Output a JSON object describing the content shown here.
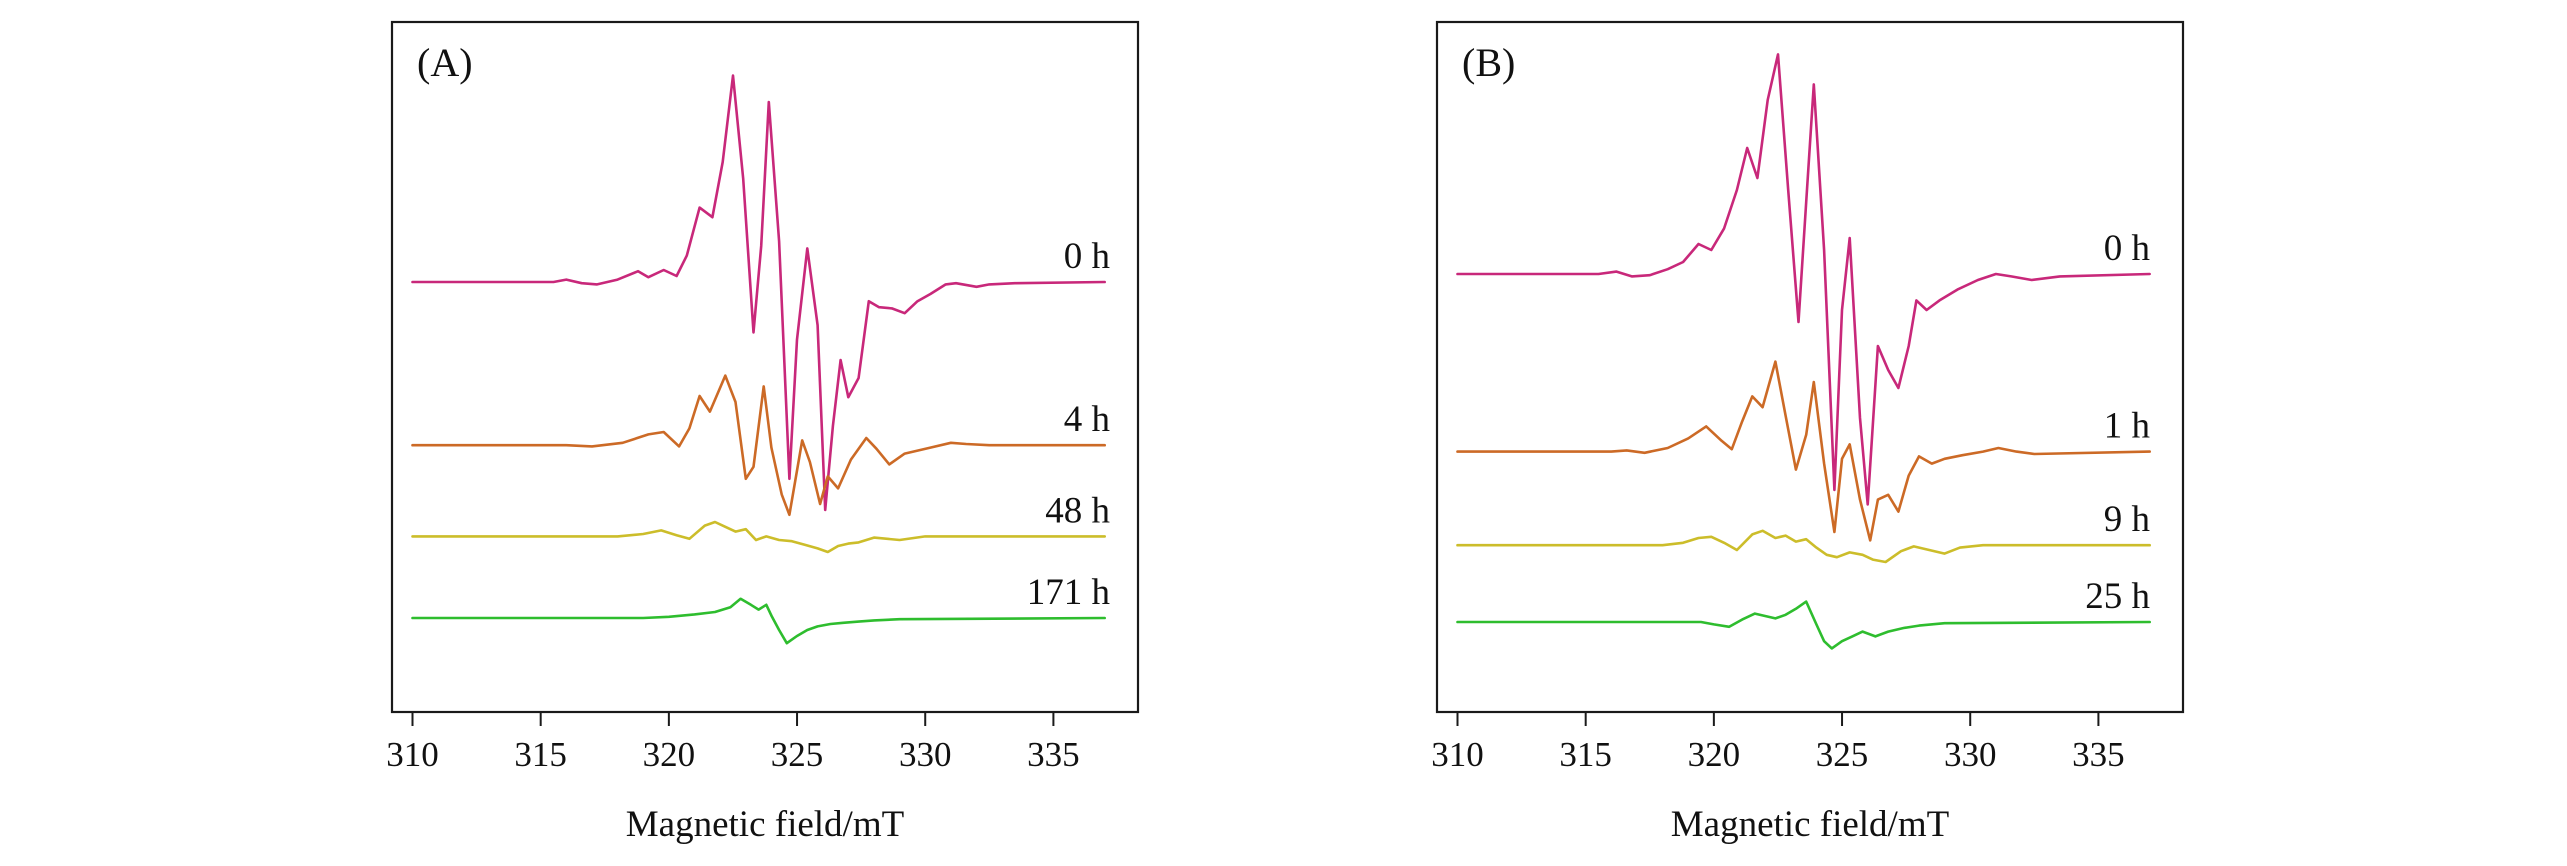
{
  "chart_data": [
    {
      "type": "line",
      "panel_label": "(A)",
      "title": "",
      "xlabel": "Magnetic field/mT",
      "ylabel": "",
      "xlim": [
        309.2,
        338.3
      ],
      "x_ticks": [
        310,
        315,
        320,
        325,
        330,
        335
      ],
      "y_axis_numbered": false,
      "grid": false,
      "series": [
        {
          "name": "0 h",
          "color": "#c8287a",
          "offset": 0,
          "points": [
            [
              310,
              0
            ],
            [
              315.5,
              0
            ],
            [
              316.0,
              2
            ],
            [
              316.6,
              -1
            ],
            [
              317.2,
              -2
            ],
            [
              318.0,
              2
            ],
            [
              318.8,
              9
            ],
            [
              319.2,
              4
            ],
            [
              319.8,
              10
            ],
            [
              320.3,
              5
            ],
            [
              320.7,
              22
            ],
            [
              321.2,
              62
            ],
            [
              321.7,
              54
            ],
            [
              322.1,
              100
            ],
            [
              322.5,
              172
            ],
            [
              322.9,
              86
            ],
            [
              323.3,
              -42
            ],
            [
              323.6,
              30
            ],
            [
              323.9,
              150
            ],
            [
              324.3,
              34
            ],
            [
              324.7,
              -164
            ],
            [
              325.0,
              -48
            ],
            [
              325.4,
              28
            ],
            [
              325.8,
              -36
            ],
            [
              326.1,
              -190
            ],
            [
              326.4,
              -120
            ],
            [
              326.7,
              -65
            ],
            [
              327.0,
              -96
            ],
            [
              327.4,
              -80
            ],
            [
              327.8,
              -16
            ],
            [
              328.2,
              -21
            ],
            [
              328.7,
              -22
            ],
            [
              329.2,
              -26
            ],
            [
              329.7,
              -16
            ],
            [
              330.2,
              -10
            ],
            [
              330.8,
              -2
            ],
            [
              331.2,
              -1
            ],
            [
              332.0,
              -4
            ],
            [
              332.5,
              -2
            ],
            [
              333.5,
              -1
            ],
            [
              337,
              0
            ]
          ]
        },
        {
          "name": "4 h",
          "color": "#cc6a26",
          "offset": -136,
          "points": [
            [
              310,
              0
            ],
            [
              316.0,
              0
            ],
            [
              317.0,
              -1
            ],
            [
              318.2,
              2
            ],
            [
              319.2,
              9
            ],
            [
              319.8,
              11
            ],
            [
              320.4,
              -1
            ],
            [
              320.8,
              14
            ],
            [
              321.2,
              41
            ],
            [
              321.6,
              28
            ],
            [
              322.2,
              58
            ],
            [
              322.6,
              36
            ],
            [
              323.0,
              -28
            ],
            [
              323.3,
              -18
            ],
            [
              323.7,
              49
            ],
            [
              324.0,
              -2
            ],
            [
              324.4,
              -41
            ],
            [
              324.7,
              -58
            ],
            [
              325.2,
              4
            ],
            [
              325.5,
              -14
            ],
            [
              325.9,
              -49
            ],
            [
              326.2,
              -26
            ],
            [
              326.6,
              -36
            ],
            [
              327.1,
              -12
            ],
            [
              327.7,
              6
            ],
            [
              328.1,
              -3
            ],
            [
              328.6,
              -16
            ],
            [
              329.2,
              -7
            ],
            [
              330.2,
              -2
            ],
            [
              331.0,
              2
            ],
            [
              331.6,
              1
            ],
            [
              332.5,
              0
            ],
            [
              337,
              0
            ]
          ]
        },
        {
          "name": "48 h",
          "color": "#ccbd2a",
          "offset": -212,
          "points": [
            [
              310,
              0
            ],
            [
              318.0,
              0
            ],
            [
              319.0,
              2
            ],
            [
              319.7,
              5
            ],
            [
              320.3,
              1
            ],
            [
              320.8,
              -2
            ],
            [
              321.4,
              9
            ],
            [
              321.8,
              12
            ],
            [
              322.2,
              8
            ],
            [
              322.6,
              4
            ],
            [
              323.0,
              6
            ],
            [
              323.4,
              -3
            ],
            [
              323.8,
              0
            ],
            [
              324.3,
              -3
            ],
            [
              324.8,
              -4
            ],
            [
              325.3,
              -7
            ],
            [
              325.8,
              -10
            ],
            [
              326.2,
              -13
            ],
            [
              326.6,
              -8
            ],
            [
              327.0,
              -6
            ],
            [
              327.4,
              -5
            ],
            [
              328.0,
              -1
            ],
            [
              329.0,
              -3
            ],
            [
              330.0,
              0
            ],
            [
              337,
              0
            ]
          ]
        },
        {
          "name": "171 h",
          "color": "#2ebd2e",
          "offset": -280,
          "points": [
            [
              310,
              0
            ],
            [
              319.0,
              0
            ],
            [
              320.0,
              1
            ],
            [
              321.0,
              3
            ],
            [
              321.8,
              5
            ],
            [
              322.4,
              9
            ],
            [
              322.8,
              16
            ],
            [
              323.2,
              11
            ],
            [
              323.5,
              7
            ],
            [
              323.8,
              11
            ],
            [
              324.0,
              2
            ],
            [
              324.3,
              -10
            ],
            [
              324.6,
              -21
            ],
            [
              325.0,
              -15
            ],
            [
              325.4,
              -10
            ],
            [
              325.8,
              -7
            ],
            [
              326.3,
              -5
            ],
            [
              326.8,
              -4
            ],
            [
              327.4,
              -3
            ],
            [
              328.0,
              -2
            ],
            [
              329.0,
              -1
            ],
            [
              337,
              0
            ]
          ]
        }
      ]
    },
    {
      "type": "line",
      "panel_label": "(B)",
      "title": "",
      "xlabel": "Magnetic field/mT",
      "ylabel": "",
      "xlim": [
        309.2,
        338.3
      ],
      "x_ticks": [
        310,
        315,
        320,
        325,
        330,
        335
      ],
      "y_axis_numbered": false,
      "grid": false,
      "series": [
        {
          "name": "0 h",
          "color": "#c8287a",
          "offset": 0,
          "points": [
            [
              310,
              0
            ],
            [
              315.5,
              0
            ],
            [
              316.2,
              2
            ],
            [
              316.8,
              -2
            ],
            [
              317.5,
              -1
            ],
            [
              318.2,
              4
            ],
            [
              318.8,
              10
            ],
            [
              319.4,
              25
            ],
            [
              319.9,
              20
            ],
            [
              320.4,
              38
            ],
            [
              320.9,
              70
            ],
            [
              321.3,
              105
            ],
            [
              321.7,
              80
            ],
            [
              322.1,
              145
            ],
            [
              322.5,
              183
            ],
            [
              322.9,
              70
            ],
            [
              323.3,
              -40
            ],
            [
              323.6,
              60
            ],
            [
              323.9,
              158
            ],
            [
              324.3,
              20
            ],
            [
              324.7,
              -180
            ],
            [
              325.0,
              -30
            ],
            [
              325.3,
              30
            ],
            [
              325.7,
              -120
            ],
            [
              326.0,
              -192
            ],
            [
              326.4,
              -60
            ],
            [
              326.8,
              -80
            ],
            [
              327.2,
              -95
            ],
            [
              327.6,
              -60
            ],
            [
              327.9,
              -22
            ],
            [
              328.3,
              -30
            ],
            [
              328.8,
              -22
            ],
            [
              329.5,
              -13
            ],
            [
              330.3,
              -5
            ],
            [
              331.0,
              0
            ],
            [
              331.6,
              -2
            ],
            [
              332.4,
              -5
            ],
            [
              333.5,
              -2
            ],
            [
              337,
              0
            ]
          ]
        },
        {
          "name": "1 h",
          "color": "#cc6a26",
          "offset": -148,
          "points": [
            [
              310,
              0
            ],
            [
              316.0,
              0
            ],
            [
              316.6,
              1
            ],
            [
              317.3,
              -1
            ],
            [
              318.2,
              3
            ],
            [
              319.0,
              11
            ],
            [
              319.7,
              21
            ],
            [
              320.3,
              9
            ],
            [
              320.7,
              2
            ],
            [
              321.1,
              25
            ],
            [
              321.5,
              46
            ],
            [
              321.9,
              37
            ],
            [
              322.4,
              75
            ],
            [
              322.8,
              30
            ],
            [
              323.2,
              -15
            ],
            [
              323.6,
              14
            ],
            [
              323.9,
              58
            ],
            [
              324.3,
              -10
            ],
            [
              324.7,
              -67
            ],
            [
              325.0,
              -6
            ],
            [
              325.3,
              6
            ],
            [
              325.7,
              -40
            ],
            [
              326.1,
              -74
            ],
            [
              326.4,
              -40
            ],
            [
              326.8,
              -36
            ],
            [
              327.2,
              -50
            ],
            [
              327.6,
              -20
            ],
            [
              328.0,
              -4
            ],
            [
              328.5,
              -10
            ],
            [
              329.0,
              -6
            ],
            [
              329.7,
              -3
            ],
            [
              330.5,
              0
            ],
            [
              331.1,
              3
            ],
            [
              331.8,
              0
            ],
            [
              332.5,
              -2
            ],
            [
              337,
              0
            ]
          ]
        },
        {
          "name": "9 h",
          "color": "#ccbd2a",
          "offset": -226,
          "points": [
            [
              310,
              0
            ],
            [
              318.0,
              0
            ],
            [
              318.8,
              2
            ],
            [
              319.4,
              6
            ],
            [
              319.9,
              7
            ],
            [
              320.4,
              2
            ],
            [
              320.9,
              -4
            ],
            [
              321.5,
              9
            ],
            [
              321.9,
              12
            ],
            [
              322.4,
              6
            ],
            [
              322.8,
              8
            ],
            [
              323.2,
              3
            ],
            [
              323.6,
              5
            ],
            [
              324.0,
              -2
            ],
            [
              324.4,
              -8
            ],
            [
              324.8,
              -10
            ],
            [
              325.3,
              -6
            ],
            [
              325.8,
              -8
            ],
            [
              326.2,
              -12
            ],
            [
              326.7,
              -14
            ],
            [
              327.3,
              -5
            ],
            [
              327.8,
              -1
            ],
            [
              328.4,
              -4
            ],
            [
              329.0,
              -7
            ],
            [
              329.6,
              -2
            ],
            [
              330.5,
              0
            ],
            [
              337,
              0
            ]
          ]
        },
        {
          "name": "25 h",
          "color": "#2ebd2e",
          "offset": -290,
          "points": [
            [
              310,
              0
            ],
            [
              319.5,
              0
            ],
            [
              320.0,
              -2
            ],
            [
              320.6,
              -4
            ],
            [
              321.1,
              2
            ],
            [
              321.6,
              7
            ],
            [
              322.0,
              5
            ],
            [
              322.4,
              3
            ],
            [
              322.8,
              6
            ],
            [
              323.2,
              11
            ],
            [
              323.6,
              17
            ],
            [
              324.0,
              -2
            ],
            [
              324.3,
              -16
            ],
            [
              324.6,
              -22
            ],
            [
              325.0,
              -16
            ],
            [
              325.4,
              -12
            ],
            [
              325.8,
              -8
            ],
            [
              326.3,
              -12
            ],
            [
              326.8,
              -8
            ],
            [
              327.4,
              -5
            ],
            [
              328.0,
              -3
            ],
            [
              329.0,
              -1
            ],
            [
              337,
              0
            ]
          ]
        }
      ]
    }
  ]
}
